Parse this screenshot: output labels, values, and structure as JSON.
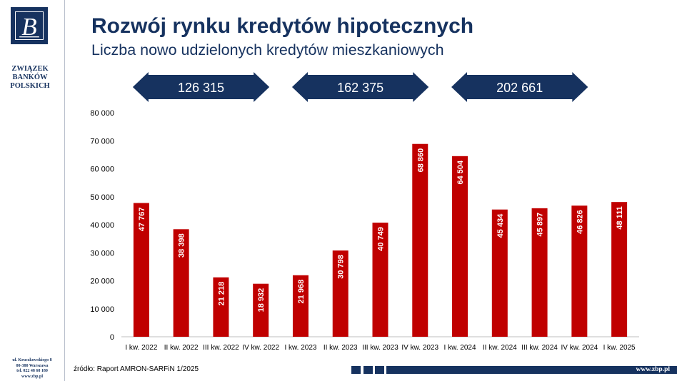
{
  "brand": {
    "logo_letter": "B",
    "org_lines": [
      "ZWIĄZEK",
      "BANKÓW",
      "POLSKICH"
    ],
    "address_lines": [
      "ul. Kruczkowskiego 8",
      "00-380 Warszawa",
      "tel. 022 48 68 180",
      "www.zbp.pl"
    ],
    "navy": "#16325f"
  },
  "header": {
    "title": "Rozwój rynku kredytów hipotecznych",
    "subtitle": "Liczba nowo udzielonych kredytów mieszkaniowych"
  },
  "chart_data": {
    "type": "bar",
    "categories": [
      "I kw. 2022",
      "II kw. 2022",
      "III kw. 2022",
      "IV kw. 2022",
      "I kw. 2023",
      "II kw. 2023",
      "III kw. 2023",
      "IV kw. 2023",
      "I kw. 2024",
      "II kw. 2024",
      "III kw. 2024",
      "IV kw. 2024",
      "I kw. 2025"
    ],
    "values": [
      47767,
      38398,
      21218,
      18932,
      21968,
      30798,
      40749,
      68860,
      64504,
      45434,
      45897,
      46826,
      48111
    ],
    "value_labels": [
      "47 767",
      "38 398",
      "21 218",
      "18 932",
      "21 968",
      "30 798",
      "40 749",
      "68 860",
      "64 504",
      "45 434",
      "45 897",
      "46 826",
      "48 111"
    ],
    "ylim": [
      0,
      80000
    ],
    "y_ticks": [
      0,
      10000,
      20000,
      30000,
      40000,
      50000,
      60000,
      70000,
      80000
    ],
    "y_tick_labels": [
      "0",
      "10 000",
      "20 000",
      "30 000",
      "40 000",
      "50 000",
      "60 000",
      "70 000",
      "80 000"
    ],
    "bar_color": "#c00000",
    "grid": false,
    "annual_totals": [
      {
        "label": "126 315",
        "from": "I kw. 2022",
        "to": "IV kw. 2022"
      },
      {
        "label": "162 375",
        "from": "I kw. 2023",
        "to": "IV kw. 2023"
      },
      {
        "label": "202 661",
        "from": "I kw. 2024",
        "to": "IV kw. 2024"
      }
    ],
    "arrow_color": "#16325f"
  },
  "footer": {
    "source": "źródło: Raport AMRON-SARFiN 1/2025",
    "url": "www.zbp.pl"
  }
}
